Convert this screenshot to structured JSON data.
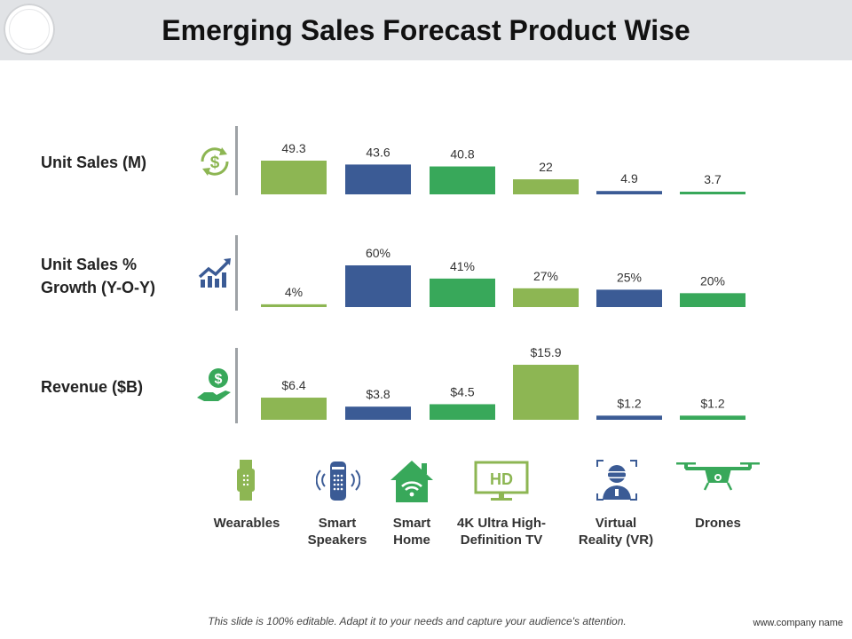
{
  "header": {
    "title": "Emerging Sales Forecast Product Wise"
  },
  "colors": {
    "green_light": "#8db653",
    "blue": "#3b5b95",
    "green": "#38a85a",
    "icon_dark": "#3b5b95",
    "icon_green": "#38a85a"
  },
  "rows": [
    {
      "label": "Unit Sales (M)",
      "icon": "dollar-cycle-icon"
    },
    {
      "label": "Unit Sales %\nGrowth  (Y-O-Y)",
      "icon": "growth-chart-icon"
    },
    {
      "label": "Revenue ($B)",
      "icon": "money-hand-icon"
    }
  ],
  "products": [
    {
      "label": "Wearables",
      "icon": "smartwatch-icon"
    },
    {
      "label": "Smart\nSpeakers",
      "icon": "smart-speaker-icon"
    },
    {
      "label": "Smart\nHome",
      "icon": "smart-home-icon"
    },
    {
      "label": "4K Ultra High-\nDefinition TV",
      "icon": "hd-tv-icon"
    },
    {
      "label": "Virtual\nReality (VR)",
      "icon": "vr-headset-icon"
    },
    {
      "label": "Drones",
      "icon": "drone-icon"
    }
  ],
  "chart_data": [
    {
      "type": "bar",
      "categories": [
        "Wearables",
        "Smart Speakers",
        "Smart Home",
        "4K Ultra High-Definition TV",
        "Virtual Reality (VR)",
        "Drones"
      ],
      "values": [
        49.3,
        43.6,
        40.8,
        22,
        4.9,
        3.7
      ],
      "labels": [
        "49.3",
        "43.6",
        "40.8",
        "22",
        "4.9",
        "3.7"
      ],
      "ylim": [
        0,
        49.3
      ]
    },
    {
      "type": "bar",
      "categories": [
        "Wearables",
        "Smart Speakers",
        "Smart Home",
        "4K Ultra High-Definition TV",
        "Virtual Reality (VR)",
        "Drones"
      ],
      "values": [
        4,
        60,
        41,
        27,
        25,
        20
      ],
      "labels": [
        "4%",
        "60%",
        "41%",
        "27%",
        "25%",
        "20%"
      ],
      "ylim": [
        0,
        60
      ]
    },
    {
      "type": "bar",
      "categories": [
        "Wearables",
        "Smart Speakers",
        "Smart Home",
        "4K Ultra High-Definition TV",
        "Virtual Reality (VR)",
        "Drones"
      ],
      "values": [
        6.4,
        3.8,
        4.5,
        15.9,
        1.2,
        1.2
      ],
      "labels": [
        "$6.4",
        "$3.8",
        "$4.5",
        "$15.9",
        "$1.2",
        "$1.2"
      ],
      "ylim": [
        0,
        15.9
      ]
    }
  ],
  "footer": {
    "note": "This slide is 100% editable. Adapt it to your needs and capture your audience's attention.",
    "company": "www.company name"
  }
}
